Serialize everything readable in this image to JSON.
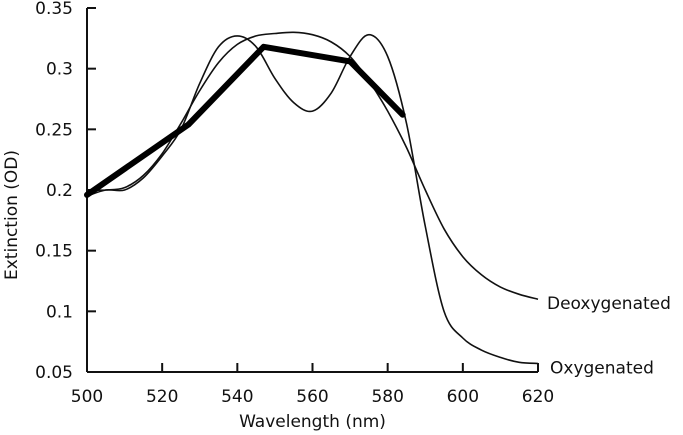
{
  "chart_data": {
    "type": "line",
    "title": "",
    "xlabel": "Wavelength (nm)",
    "ylabel": "Extinction (OD)",
    "xlim": [
      500,
      620
    ],
    "ylim": [
      0.05,
      0.35
    ],
    "xticks": [
      500,
      520,
      540,
      560,
      580,
      600,
      620
    ],
    "yticks": [
      "0.35",
      "0.3",
      "0.25",
      "0.2",
      "0.15",
      "0.1",
      "0.05"
    ],
    "grid": false,
    "series": [
      {
        "name": "Deoxygenated",
        "style": "thin",
        "x": [
          500,
          505,
          510,
          515,
          520,
          525,
          530,
          535,
          540,
          545,
          550,
          555,
          560,
          565,
          570,
          575,
          580,
          585,
          590,
          595,
          600,
          605,
          610,
          615,
          620
        ],
        "y": [
          0.2,
          0.2,
          0.202,
          0.212,
          0.23,
          0.255,
          0.282,
          0.305,
          0.32,
          0.327,
          0.329,
          0.33,
          0.328,
          0.322,
          0.31,
          0.29,
          0.265,
          0.235,
          0.2,
          0.168,
          0.145,
          0.13,
          0.12,
          0.114,
          0.11
        ]
      },
      {
        "name": "Oxygenated",
        "style": "thin",
        "x": [
          500,
          505,
          510,
          515,
          520,
          525,
          530,
          535,
          540,
          545,
          550,
          555,
          560,
          565,
          570,
          575,
          580,
          585,
          590,
          595,
          600,
          605,
          610,
          615,
          620
        ],
        "y": [
          0.195,
          0.2,
          0.2,
          0.21,
          0.228,
          0.25,
          0.288,
          0.318,
          0.327,
          0.318,
          0.292,
          0.272,
          0.265,
          0.28,
          0.31,
          0.328,
          0.31,
          0.255,
          0.17,
          0.1,
          0.078,
          0.068,
          0.062,
          0.058,
          0.057
        ]
      },
      {
        "name": "",
        "style": "bold",
        "x": [
          500,
          527,
          547,
          570,
          584
        ],
        "y": [
          0.196,
          0.254,
          0.318,
          0.306,
          0.262
        ]
      }
    ]
  }
}
